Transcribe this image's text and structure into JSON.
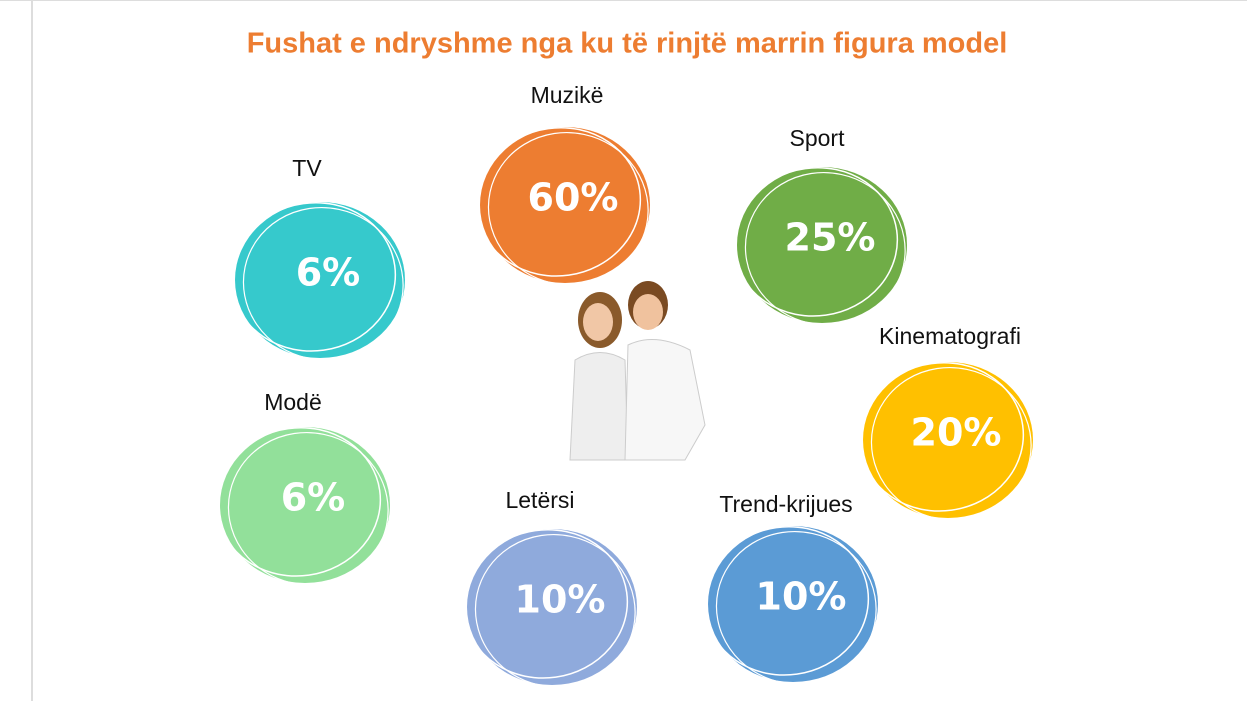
{
  "title": "Fushat e ndryshme nga ku të rinjtë marrin figura model",
  "items": [
    {
      "label": "Muzikë",
      "value": "60%"
    },
    {
      "label": "Sport",
      "value": "25%"
    },
    {
      "label": "TV",
      "value": "6%"
    },
    {
      "label": "Kinematografi",
      "value": "20%"
    },
    {
      "label": "Modë",
      "value": "6%"
    },
    {
      "label": "Letërsi",
      "value": "10%"
    },
    {
      "label": "Trend-krijues",
      "value": "10%"
    }
  ]
}
